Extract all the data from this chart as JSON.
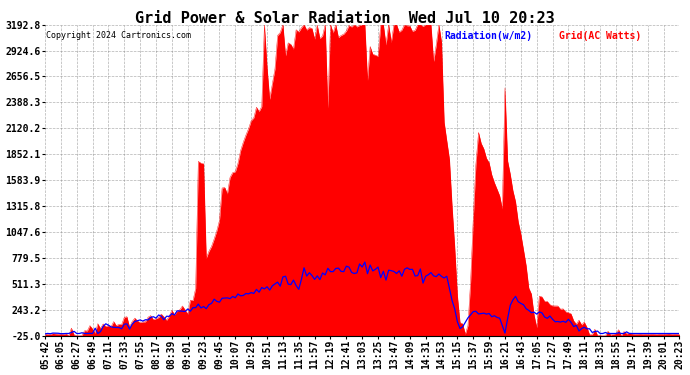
{
  "title": "Grid Power & Solar Radiation  Wed Jul 10 20:23",
  "copyright": "Copyright 2024 Cartronics.com",
  "legend_radiation": "Radiation(w/m2)",
  "legend_grid": "Grid(AC Watts)",
  "ylim_min": -25.0,
  "ylim_max": 3192.8,
  "yticks": [
    3192.8,
    2924.6,
    2656.5,
    2388.3,
    2120.2,
    1852.1,
    1583.9,
    1315.8,
    1047.6,
    779.5,
    511.3,
    243.2,
    -25.0
  ],
  "background_color": "#ffffff",
  "title_fontsize": 11,
  "tick_fontsize": 7,
  "xtick_labels": [
    "05:42",
    "06:05",
    "06:27",
    "06:49",
    "07:11",
    "07:33",
    "07:55",
    "08:17",
    "08:39",
    "09:01",
    "09:23",
    "09:45",
    "10:07",
    "10:29",
    "10:51",
    "11:13",
    "11:35",
    "11:57",
    "12:19",
    "12:41",
    "13:03",
    "13:25",
    "13:47",
    "14:09",
    "14:31",
    "14:53",
    "15:15",
    "15:37",
    "15:59",
    "16:21",
    "16:43",
    "17:05",
    "17:27",
    "17:49",
    "18:11",
    "18:33",
    "18:55",
    "19:17",
    "19:39",
    "20:01",
    "20:23"
  ]
}
